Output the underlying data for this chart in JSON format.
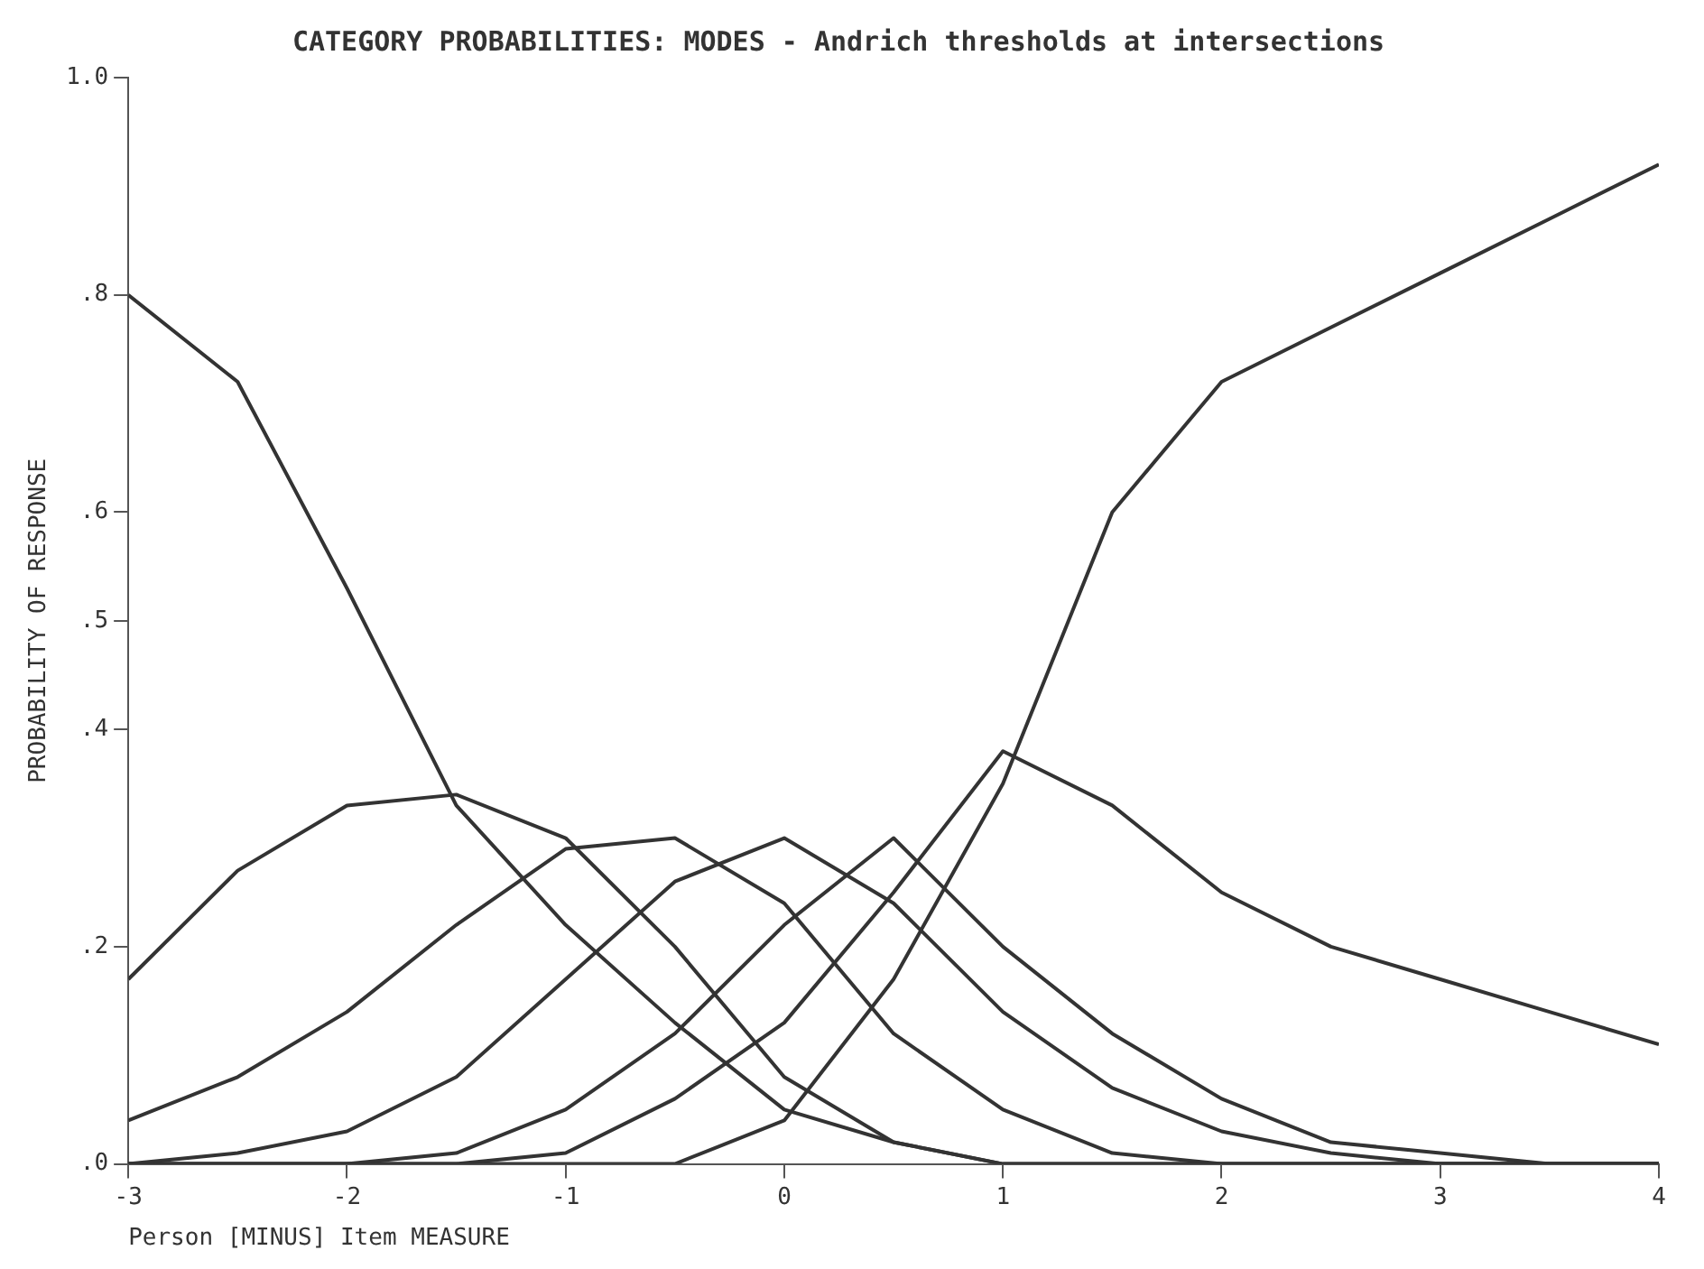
{
  "chart_data": {
    "type": "line",
    "title": "CATEGORY PROBABILITIES: MODES - Andrich thresholds at intersections",
    "xlabel": "Person [MINUS] Item MEASURE",
    "ylabel": "PROBABILITY OF RESPONSE",
    "x": [
      -3,
      -2.5,
      -2,
      -1.5,
      -1,
      -0.5,
      0,
      0.5,
      1,
      1.5,
      2,
      2.5,
      3,
      3.5,
      4
    ],
    "series": [
      {
        "color": "#333333",
        "values": [
          0.8,
          0.72,
          0.53,
          0.33,
          0.22,
          0.13,
          0.05,
          0.02,
          0,
          0,
          0,
          0,
          0,
          0,
          0
        ]
      },
      {
        "color": "#333333",
        "values": [
          0.17,
          0.27,
          0.33,
          0.34,
          0.3,
          0.2,
          0.08,
          0.02,
          0,
          0,
          0,
          0,
          0,
          0,
          0
        ]
      },
      {
        "color": "#333333",
        "values": [
          0.04,
          0.08,
          0.14,
          0.22,
          0.29,
          0.3,
          0.24,
          0.12,
          0.05,
          0.01,
          0,
          0,
          0,
          0,
          0
        ]
      },
      {
        "color": "#333333",
        "values": [
          0,
          0.01,
          0.03,
          0.08,
          0.17,
          0.26,
          0.3,
          0.24,
          0.14,
          0.07,
          0.03,
          0.01,
          0,
          0,
          0
        ]
      },
      {
        "color": "#333333",
        "values": [
          0,
          0,
          0,
          0.01,
          0.05,
          0.12,
          0.22,
          0.3,
          0.2,
          0.12,
          0.06,
          0.02,
          0.01,
          0,
          0
        ]
      },
      {
        "color": "#333333",
        "values": [
          0,
          0,
          0,
          0,
          0.01,
          0.06,
          0.13,
          0.25,
          0.38,
          0.33,
          0.25,
          0.2,
          0.17,
          0.14,
          0.11
        ]
      },
      {
        "color": "#333333",
        "values": [
          0,
          0,
          0,
          0,
          0,
          0,
          0.04,
          0.17,
          0.35,
          0.6,
          0.72,
          0.77,
          0.82,
          0.87,
          0.92
        ]
      }
    ],
    "xlim": [
      -3,
      4
    ],
    "xticks": [
      -3,
      -2,
      -1,
      0,
      1,
      2,
      3,
      4
    ],
    "ylim": [
      0,
      1
    ],
    "yticks": [
      {
        "value": 0,
        "label": ".0"
      },
      {
        "value": 0.2,
        "label": ".2"
      },
      {
        "value": 0.4,
        "label": ".4"
      },
      {
        "value": 0.5,
        "label": ".5"
      },
      {
        "value": 0.6,
        "label": ".6"
      },
      {
        "value": 0.8,
        "label": ".8"
      },
      {
        "value": 1,
        "label": "1.0"
      }
    ],
    "grid": false,
    "legend": false,
    "marker": "none",
    "line_style": "solid"
  }
}
